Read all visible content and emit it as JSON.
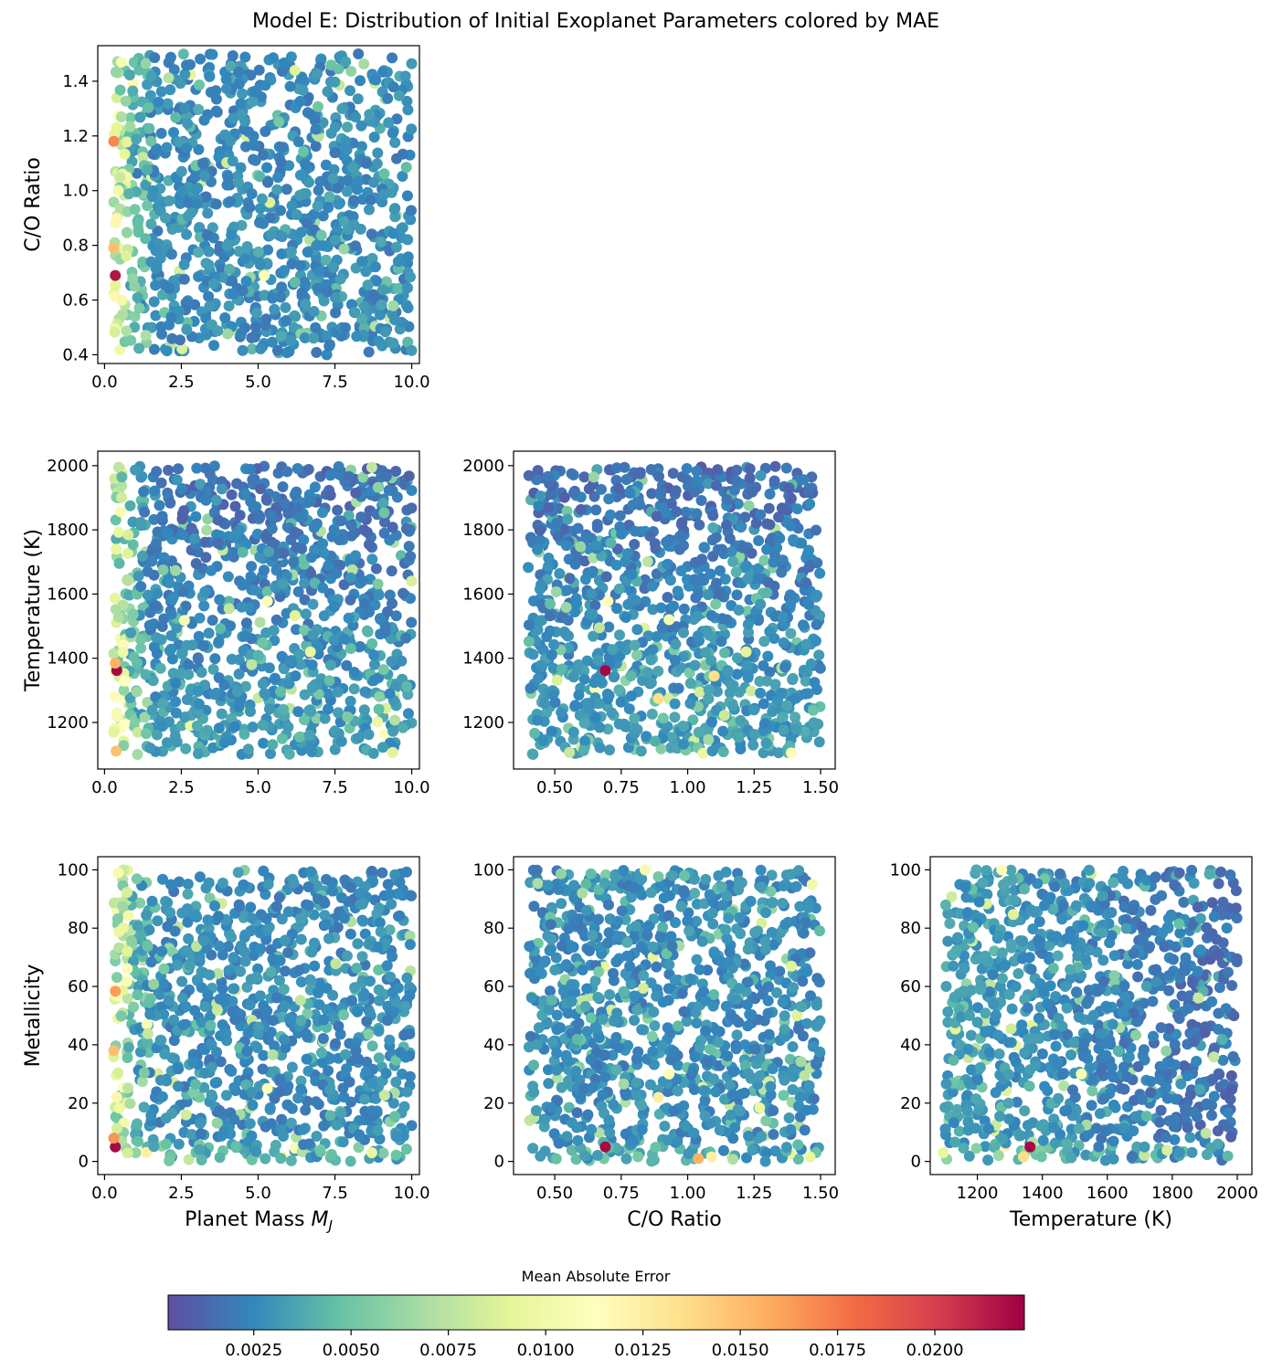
{
  "figure": {
    "title": "Model E: Distribution of Initial Exoplanet Parameters colored by MAE"
  },
  "colorbar": {
    "label": "Mean Absolute Error",
    "min": 0.0003,
    "max": 0.0223,
    "colormap": "Spectral_r",
    "colormap_stops": [
      "#5e4fa2",
      "#3288bd",
      "#66c2a5",
      "#abdda4",
      "#e6f598",
      "#ffffbf",
      "#fee08b",
      "#fdae61",
      "#f46d43",
      "#d53e4f",
      "#9e0142"
    ],
    "ticks": [
      0.0025,
      0.005,
      0.0075,
      0.01,
      0.0125,
      0.015,
      0.0175,
      0.02
    ],
    "tick_labels": [
      "0.0025",
      "0.0050",
      "0.0075",
      "0.0100",
      "0.0125",
      "0.0150",
      "0.0175",
      "0.0200"
    ]
  },
  "chart_data": [
    {
      "type": "scatter",
      "panel": "mass-vs-co",
      "xlabel": "",
      "ylabel": "C/O Ratio",
      "xlim": [
        -0.22,
        10.25
      ],
      "ylim": [
        0.368,
        1.53
      ],
      "xticks": [
        0,
        2.5,
        5,
        7.5,
        10
      ],
      "xtick_labels": [
        "0.0",
        "2.5",
        "5.0",
        "7.5",
        "10.0"
      ],
      "yticks": [
        0.4,
        0.6,
        0.8,
        1.0,
        1.2,
        1.4
      ],
      "ytick_labels": [
        "0.4",
        "0.6",
        "0.8",
        "1.0",
        "1.2",
        "1.4"
      ],
      "x_range": [
        0.3,
        10.0
      ],
      "y_range": [
        0.4,
        1.5
      ],
      "highlight_points": [
        {
          "x": 0.35,
          "y": 0.69,
          "mae": 0.0215
        },
        {
          "x": 0.3,
          "y": 1.18,
          "mae": 0.017
        },
        {
          "x": 0.3,
          "y": 0.79,
          "mae": 0.015
        },
        {
          "x": 0.4,
          "y": 0.9,
          "mae": 0.012
        },
        {
          "x": 5.2,
          "y": 0.69,
          "mae": 0.0115
        },
        {
          "x": 0.55,
          "y": 1.47,
          "mae": 0.0105
        },
        {
          "x": 6.2,
          "y": 1.44,
          "mae": 0.009
        },
        {
          "x": 0.5,
          "y": 1.05,
          "mae": 0.008
        }
      ]
    },
    {
      "type": "scatter",
      "panel": "mass-vs-temperature",
      "xlabel": "",
      "ylabel": "Temperature (K)",
      "xlim": [
        -0.22,
        10.25
      ],
      "ylim": [
        1055,
        2045
      ],
      "xticks": [
        0,
        2.5,
        5,
        7.5,
        10
      ],
      "xtick_labels": [
        "0.0",
        "2.5",
        "5.0",
        "7.5",
        "10.0"
      ],
      "yticks": [
        1200,
        1400,
        1600,
        1800,
        2000
      ],
      "ytick_labels": [
        "1200",
        "1400",
        "1600",
        "1800",
        "2000"
      ],
      "x_range": [
        0.3,
        10.0
      ],
      "y_range": [
        1100,
        2000
      ],
      "highlight_points": [
        {
          "x": 0.4,
          "y": 1362,
          "mae": 0.022
        },
        {
          "x": 0.35,
          "y": 1385,
          "mae": 0.0155
        },
        {
          "x": 0.35,
          "y": 1280,
          "mae": 0.0115
        },
        {
          "x": 0.4,
          "y": 1230,
          "mae": 0.0105
        },
        {
          "x": 5.3,
          "y": 1578,
          "mae": 0.0115
        },
        {
          "x": 2.6,
          "y": 1518,
          "mae": 0.0105
        },
        {
          "x": 6.7,
          "y": 1420,
          "mae": 0.0095
        },
        {
          "x": 6.2,
          "y": 1533,
          "mae": 0.009
        },
        {
          "x": 0.3,
          "y": 1170,
          "mae": 0.009
        }
      ]
    },
    {
      "type": "scatter",
      "panel": "co-vs-temperature",
      "xlabel": "",
      "ylabel": "",
      "xlim": [
        0.345,
        1.555
      ],
      "ylim": [
        1055,
        2045
      ],
      "xticks": [
        0.5,
        0.75,
        1.0,
        1.25,
        1.5
      ],
      "xtick_labels": [
        "0.50",
        "0.75",
        "1.00",
        "1.25",
        "1.50"
      ],
      "yticks": [
        1200,
        1400,
        1600,
        1800,
        2000
      ],
      "ytick_labels": [
        "1200",
        "1400",
        "1600",
        "1800",
        "2000"
      ],
      "x_range": [
        0.4,
        1.5
      ],
      "y_range": [
        1100,
        2000
      ],
      "highlight_points": [
        {
          "x": 0.69,
          "y": 1362,
          "mae": 0.022
        },
        {
          "x": 0.89,
          "y": 1275,
          "mae": 0.0135
        },
        {
          "x": 1.1,
          "y": 1345,
          "mae": 0.0135
        },
        {
          "x": 0.7,
          "y": 1578,
          "mae": 0.0115
        },
        {
          "x": 0.93,
          "y": 1520,
          "mae": 0.0105
        },
        {
          "x": 1.39,
          "y": 1105,
          "mae": 0.0115
        },
        {
          "x": 1.22,
          "y": 1420,
          "mae": 0.009
        }
      ]
    },
    {
      "type": "scatter",
      "panel": "mass-vs-metallicity",
      "xlabel": "Planet Mass",
      "xlabel_symbol": "M",
      "xlabel_subscript": "J",
      "ylabel": "Metallicity",
      "xlim": [
        -0.22,
        10.25
      ],
      "ylim": [
        -4.5,
        104.5
      ],
      "xticks": [
        0,
        2.5,
        5,
        7.5,
        10
      ],
      "xtick_labels": [
        "0.0",
        "2.5",
        "5.0",
        "7.5",
        "10.0"
      ],
      "yticks": [
        0,
        20,
        40,
        60,
        80,
        100
      ],
      "ytick_labels": [
        "0",
        "20",
        "40",
        "60",
        "80",
        "100"
      ],
      "x_range": [
        0.3,
        10.0
      ],
      "y_range": [
        0,
        100
      ],
      "highlight_points": [
        {
          "x": 0.35,
          "y": 5,
          "mae": 0.022
        },
        {
          "x": 0.3,
          "y": 8,
          "mae": 0.0165
        },
        {
          "x": 0.3,
          "y": 38,
          "mae": 0.015
        },
        {
          "x": 0.4,
          "y": 22,
          "mae": 0.012
        },
        {
          "x": 5.3,
          "y": 25,
          "mae": 0.0115
        },
        {
          "x": 0.45,
          "y": 99,
          "mae": 0.0105
        },
        {
          "x": 8.7,
          "y": 3,
          "mae": 0.0095
        }
      ]
    },
    {
      "type": "scatter",
      "panel": "co-vs-metallicity",
      "xlabel": "C/O Ratio",
      "ylabel": "",
      "xlim": [
        0.345,
        1.555
      ],
      "ylim": [
        -4.5,
        104.5
      ],
      "xticks": [
        0.5,
        0.75,
        1.0,
        1.25,
        1.5
      ],
      "xtick_labels": [
        "0.50",
        "0.75",
        "1.00",
        "1.25",
        "1.50"
      ],
      "yticks": [
        0,
        20,
        40,
        60,
        80,
        100
      ],
      "ytick_labels": [
        "0",
        "20",
        "40",
        "60",
        "80",
        "100"
      ],
      "x_range": [
        0.4,
        1.5
      ],
      "y_range": [
        0,
        100
      ],
      "highlight_points": [
        {
          "x": 0.69,
          "y": 5,
          "mae": 0.022
        },
        {
          "x": 1.04,
          "y": 1,
          "mae": 0.0155
        },
        {
          "x": 1.09,
          "y": 1.5,
          "mae": 0.0125
        },
        {
          "x": 0.89,
          "y": 22,
          "mae": 0.0125
        },
        {
          "x": 0.93,
          "y": 30,
          "mae": 0.0115
        },
        {
          "x": 0.84,
          "y": 100,
          "mae": 0.0105
        },
        {
          "x": 1.46,
          "y": 1.5,
          "mae": 0.0095
        },
        {
          "x": 1.39,
          "y": 67,
          "mae": 0.009
        }
      ]
    },
    {
      "type": "scatter",
      "panel": "temperature-vs-metallicity",
      "xlabel": "Temperature (K)",
      "ylabel": "",
      "xlim": [
        1055,
        2045
      ],
      "ylim": [
        -4.5,
        104.5
      ],
      "xticks": [
        1200,
        1400,
        1600,
        1800,
        2000
      ],
      "xtick_labels": [
        "1200",
        "1400",
        "1600",
        "1800",
        "2000"
      ],
      "yticks": [
        0,
        20,
        40,
        60,
        80,
        100
      ],
      "ytick_labels": [
        "0",
        "20",
        "40",
        "60",
        "80",
        "100"
      ],
      "x_range": [
        1100,
        2000
      ],
      "y_range": [
        0,
        100
      ],
      "highlight_points": [
        {
          "x": 1362,
          "y": 5,
          "mae": 0.022
        },
        {
          "x": 1342,
          "y": 1.5,
          "mae": 0.0135
        },
        {
          "x": 1275,
          "y": 100,
          "mae": 0.0115
        },
        {
          "x": 1520,
          "y": 30,
          "mae": 0.0105
        },
        {
          "x": 1095,
          "y": 3,
          "mae": 0.0095
        },
        {
          "x": 1880,
          "y": 56,
          "mae": 0.008
        }
      ]
    }
  ]
}
